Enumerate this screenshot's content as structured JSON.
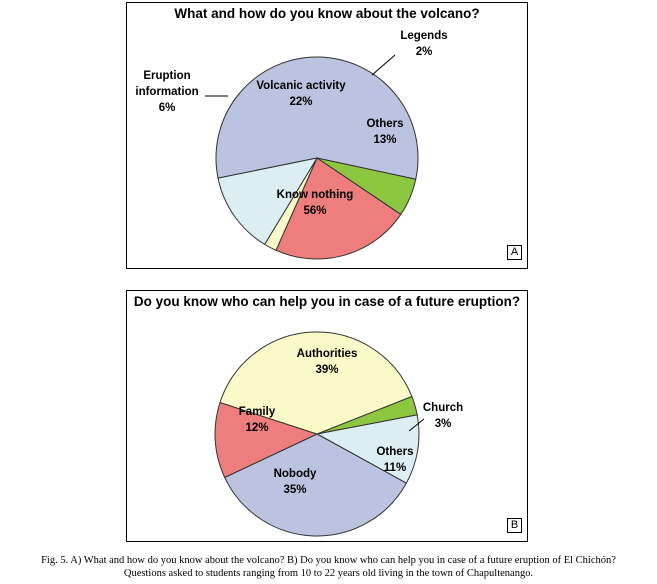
{
  "chart_data": [
    {
      "type": "pie",
      "title": "What and how do you know about the volcano?",
      "panel_label": "A",
      "slices": [
        {
          "name": "Know nothing",
          "value": 56,
          "label": "56%",
          "color": "#bcc3e0"
        },
        {
          "name": "Eruption information",
          "value": 6,
          "label": "6%",
          "color": "#8dc63f"
        },
        {
          "name": "Volcanic activity",
          "value": 22,
          "label": "22%",
          "color": "#ee7d7d"
        },
        {
          "name": "Legends",
          "value": 2,
          "label": "2%",
          "color": "#fafac8"
        },
        {
          "name": "Others",
          "value": 13,
          "label": "13%",
          "color": "#dceef2"
        }
      ]
    },
    {
      "type": "pie",
      "title": "Do you know who can help you in case of a future eruption?",
      "panel_label": "B",
      "slices": [
        {
          "name": "Church",
          "value": 3,
          "label": "3%",
          "color": "#8dc63f"
        },
        {
          "name": "Others",
          "value": 11,
          "label": "11%",
          "color": "#dceef2"
        },
        {
          "name": "Nobody",
          "value": 35,
          "label": "35%",
          "color": "#bcc3e0"
        },
        {
          "name": "Family",
          "value": 12,
          "label": "12%",
          "color": "#ee7d7d"
        },
        {
          "name": "Authorities",
          "value": 39,
          "label": "39%",
          "color": "#fafac8"
        }
      ]
    }
  ],
  "caption": {
    "line1": "Fig. 5. A) What and how do you know about the volcano? B) Do you know who can help you in case of a future eruption of El Chichón?",
    "line2": "Questions asked to students ranging from 10 to 22 years old living in the town of Chapultenango."
  }
}
